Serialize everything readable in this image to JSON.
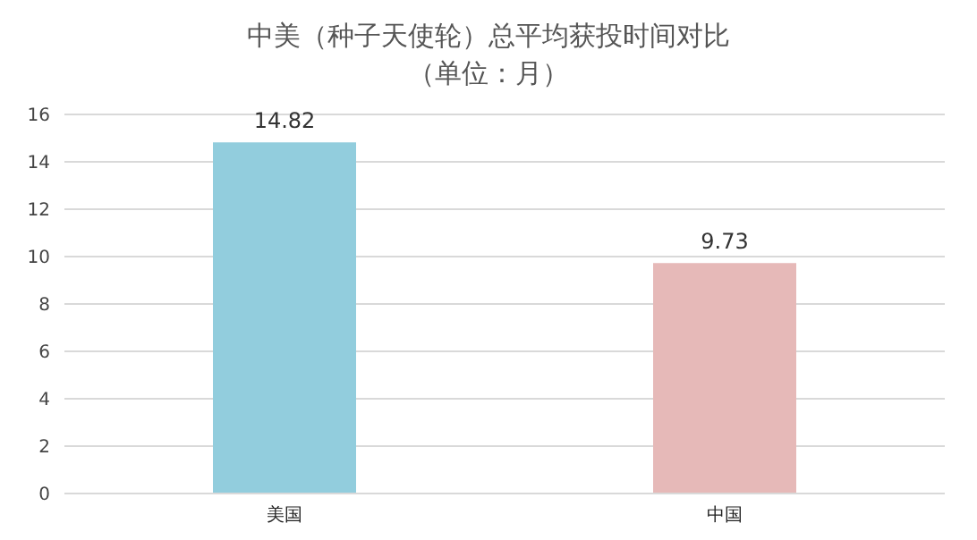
{
  "chart_data": {
    "type": "bar",
    "title": "中美（种子天使轮）总平均获投时间对比",
    "subtitle": "（单位：月）",
    "categories": [
      "美国",
      "中国"
    ],
    "values": [
      14.82,
      9.73
    ],
    "colors": [
      "#92cddd",
      "#e6b9b8"
    ],
    "ylim": [
      0,
      16
    ],
    "yticks": [
      0,
      2,
      4,
      6,
      8,
      10,
      12,
      14,
      16
    ],
    "grid": "y",
    "data_labels": true
  }
}
